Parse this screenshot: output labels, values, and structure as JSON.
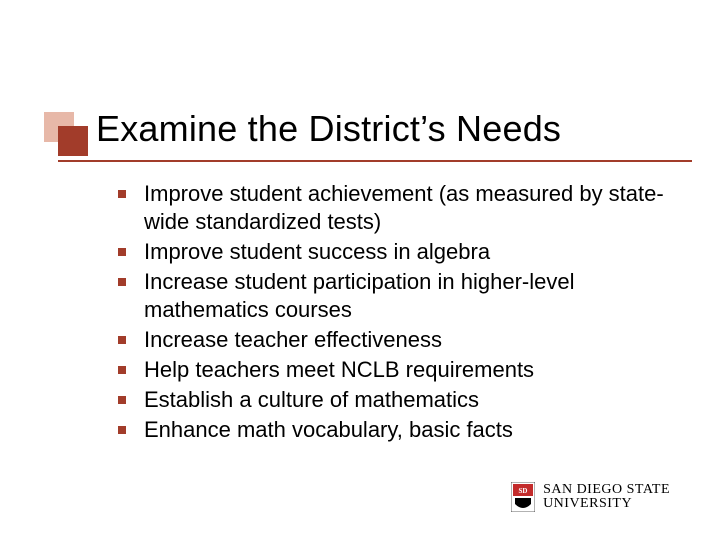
{
  "theme": {
    "accent_light": "#e7b8a8",
    "accent_dark": "#a23c2a",
    "underline_color": "#a23c2a",
    "bullet_color": "#a23c2a",
    "text_color": "#000000",
    "background": "#ffffff",
    "title_fontsize": 36,
    "body_fontsize": 22,
    "logo_red": "#c32b2b",
    "logo_text_color": "#000000"
  },
  "title": "Examine the District’s Needs",
  "bullets": [
    "Improve student achievement (as measured by state-wide standardized tests)",
    "Improve student success in algebra",
    "Increase student participation in higher-level mathematics courses",
    "Increase teacher effectiveness",
    "Help teachers meet NCLB requirements",
    "Establish a culture of mathematics",
    "Enhance math vocabulary, basic facts"
  ],
  "logo": {
    "line1": "SAN DIEGO STATE",
    "line2": "UNIVERSITY"
  }
}
